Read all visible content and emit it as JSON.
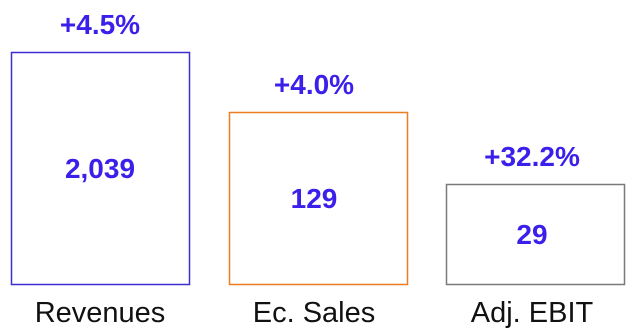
{
  "chart_data": {
    "type": "bar",
    "categories": [
      "Revenues",
      "Ec. Sales",
      "Adj. EBIT"
    ],
    "bars": [
      {
        "category": "Revenues",
        "value_label": "2,039",
        "change": "+4.5%",
        "border_color": "#3b2fd0",
        "relative_height": 1.0
      },
      {
        "category": "Ec. Sales",
        "value_label": "129",
        "change": "+4.0%",
        "border_color": "#ee7d22",
        "relative_height": 0.74
      },
      {
        "category": "Adj. EBIT",
        "value_label": "29",
        "change": "+32.2%",
        "border_color": "#7a7a7a",
        "relative_height": 0.43
      }
    ],
    "title": "",
    "xlabel": "",
    "ylabel": ""
  },
  "colors": {
    "label_text": "#3b1fea",
    "category_text": "#111111"
  }
}
